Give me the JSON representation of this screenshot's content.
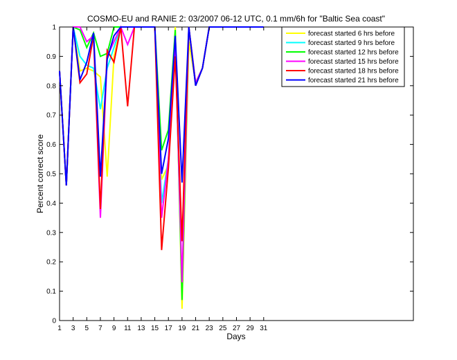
{
  "chart_data": {
    "type": "line",
    "title": "COSMO-EU and RANIE 2: 03/2007 06-12 UTC, 0.1 mm/6h for \"Baltic Sea coast\"",
    "xlabel": "Days",
    "ylabel": "Percent correct score",
    "xlim": [
      1,
      53
    ],
    "ylim": [
      0,
      1
    ],
    "xticks": [
      1,
      3,
      5,
      7,
      9,
      11,
      13,
      15,
      17,
      19,
      21,
      23,
      25,
      27,
      29,
      31
    ],
    "yticks": [
      0,
      0.1,
      0.2,
      0.3,
      0.4,
      0.5,
      0.6,
      0.7,
      0.8,
      0.9,
      1
    ],
    "ytick_labels": [
      "0",
      "0.1",
      "0.2",
      "0.3",
      "0.4",
      "0.5",
      "0.6",
      "0.7",
      "0.8",
      "0.9",
      "1"
    ],
    "grid": false,
    "legend": "top-right",
    "series": [
      {
        "name": "forecast started 6 hrs before",
        "color": "#ffff00",
        "x": [
          1,
          2,
          3,
          4,
          5,
          6,
          7,
          8,
          9,
          10,
          11,
          12,
          13,
          14,
          15,
          16,
          17,
          18,
          19,
          20,
          21,
          22,
          23,
          24,
          25,
          26,
          27,
          28,
          29,
          30,
          31
        ],
        "y": [
          0.85,
          0.46,
          1,
          0.85,
          0.86,
          0.85,
          0.83,
          0.49,
          0.9,
          1,
          1,
          1,
          1,
          1,
          1,
          0.48,
          0.53,
          1,
          0.04,
          0.95,
          0.81,
          0.86,
          1,
          1,
          1,
          1,
          1,
          1,
          1,
          1,
          1
        ]
      },
      {
        "name": "forecast started 9 hrs before",
        "color": "#00ffff",
        "x": [
          1,
          2,
          3,
          4,
          5,
          6,
          7,
          8,
          9,
          10,
          11,
          12,
          13,
          14,
          15,
          16,
          17,
          18,
          19,
          20,
          21,
          22,
          23,
          24,
          25,
          26,
          27,
          28,
          29,
          30,
          31
        ],
        "y": [
          0.85,
          0.46,
          1,
          0.9,
          0.87,
          0.86,
          0.72,
          0.86,
          0.93,
          1,
          1,
          1,
          1,
          1,
          1,
          0.4,
          0.55,
          0.96,
          0.1,
          1,
          0.8,
          0.86,
          1,
          1,
          1,
          1,
          1,
          1,
          1,
          1,
          1
        ]
      },
      {
        "name": "forecast started 12 hrs before",
        "color": "#00ff00",
        "x": [
          1,
          2,
          3,
          4,
          5,
          6,
          7,
          8,
          9,
          10,
          11,
          12,
          13,
          14,
          15,
          16,
          17,
          18,
          19,
          20,
          21,
          22,
          23,
          24,
          25,
          26,
          27,
          28,
          29,
          30,
          31
        ],
        "y": [
          0.85,
          0.46,
          1,
          0.99,
          0.93,
          0.98,
          0.9,
          0.91,
          1,
          1,
          1,
          1,
          1,
          1,
          1,
          0.58,
          0.65,
          0.99,
          0.07,
          1,
          0.81,
          0.86,
          1,
          1,
          1,
          1,
          1,
          1,
          1,
          1,
          1
        ]
      },
      {
        "name": "forecast started 15 hrs before",
        "color": "#ff00ff",
        "x": [
          1,
          2,
          3,
          4,
          5,
          6,
          7,
          8,
          9,
          10,
          11,
          12,
          13,
          14,
          15,
          16,
          17,
          18,
          19,
          20,
          21,
          22,
          23,
          24,
          25,
          26,
          27,
          28,
          29,
          30,
          31
        ],
        "y": [
          0.85,
          0.46,
          1,
          1,
          0.95,
          0.97,
          0.35,
          0.9,
          0.95,
          1,
          0.94,
          1,
          1,
          1,
          1,
          0.35,
          0.55,
          0.95,
          0.13,
          1,
          0.81,
          0.86,
          1,
          1,
          1,
          1,
          1,
          1,
          1,
          1,
          1
        ]
      },
      {
        "name": "forecast started 18 hrs before",
        "color": "#ff0000",
        "x": [
          1,
          2,
          3,
          4,
          5,
          6,
          7,
          8,
          9,
          10,
          11,
          12,
          13,
          14,
          15,
          16,
          17,
          18,
          19,
          20,
          21,
          22,
          23,
          24,
          25,
          26,
          27,
          28,
          29,
          30,
          31
        ],
        "y": [
          0.85,
          0.46,
          1,
          0.81,
          0.84,
          0.97,
          0.38,
          0.92,
          0.88,
          1,
          0.73,
          1,
          1,
          1,
          1,
          0.24,
          0.52,
          0.9,
          0.27,
          1,
          0.8,
          0.86,
          1,
          1,
          1,
          1,
          1,
          1,
          1,
          1,
          1
        ]
      },
      {
        "name": "forecast started 21 hrs before",
        "color": "#0000ff",
        "x": [
          1,
          2,
          3,
          4,
          5,
          6,
          7,
          8,
          9,
          10,
          11,
          12,
          13,
          14,
          15,
          16,
          17,
          18,
          19,
          20,
          21,
          22,
          23,
          24,
          25,
          26,
          27,
          28,
          29,
          30,
          31
        ],
        "y": [
          0.85,
          0.46,
          1,
          0.82,
          0.88,
          0.98,
          0.49,
          0.89,
          0.97,
          1,
          1,
          1,
          1,
          1,
          1,
          0.5,
          0.62,
          0.97,
          0.47,
          1,
          0.8,
          0.86,
          1,
          1,
          1,
          1,
          1,
          1,
          1,
          1,
          1
        ]
      }
    ]
  }
}
